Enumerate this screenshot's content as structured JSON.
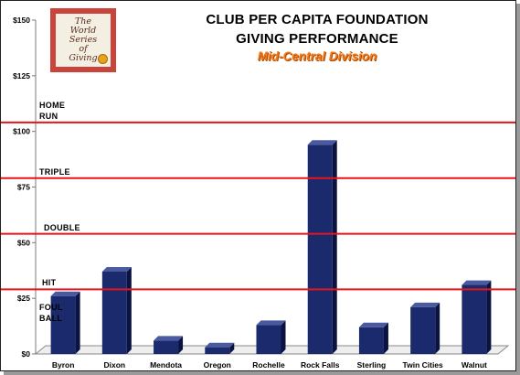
{
  "title_lines": [
    "CLUB PER CAPITA FOUNDATION",
    "GIVING PERFORMANCE"
  ],
  "subtitle": "Mid-Central Division",
  "logo_text": "The\nWorld Series\nof\nGiving",
  "colors": {
    "bar": "#1a2a6c",
    "bar_side": "#0b1440",
    "bar_top": "#4a5aa0",
    "threshold": "#e8141c",
    "subtitle": "#f07a1a"
  },
  "chart_data": {
    "type": "bar",
    "title": "CLUB PER CAPITA FOUNDATION GIVING PERFORMANCE",
    "subtitle": "Mid-Central Division",
    "categories": [
      "Byron",
      "Dixon",
      "Mendota",
      "Oregon",
      "Rochelle",
      "Rock Falls",
      "Sterling",
      "Twin Cities",
      "Walnut"
    ],
    "values": [
      26,
      37,
      6,
      3,
      13,
      94,
      12,
      21,
      31
    ],
    "ylim": [
      0,
      150
    ],
    "yticks": [
      0,
      25,
      50,
      75,
      100,
      125,
      150
    ],
    "ytick_labels": [
      "$0",
      "$25",
      "$50",
      "$75",
      "$100",
      "$125",
      "$150"
    ],
    "grid": false,
    "thresholds": [
      {
        "label": "HOME\nRUN",
        "value": 104
      },
      {
        "label": "TRIPLE",
        "value": 79
      },
      {
        "label": "DOUBLE",
        "value": 54
      },
      {
        "label": "HIT",
        "value": 29
      },
      {
        "label": "FOUL\nBALL",
        "value": 0
      }
    ]
  }
}
